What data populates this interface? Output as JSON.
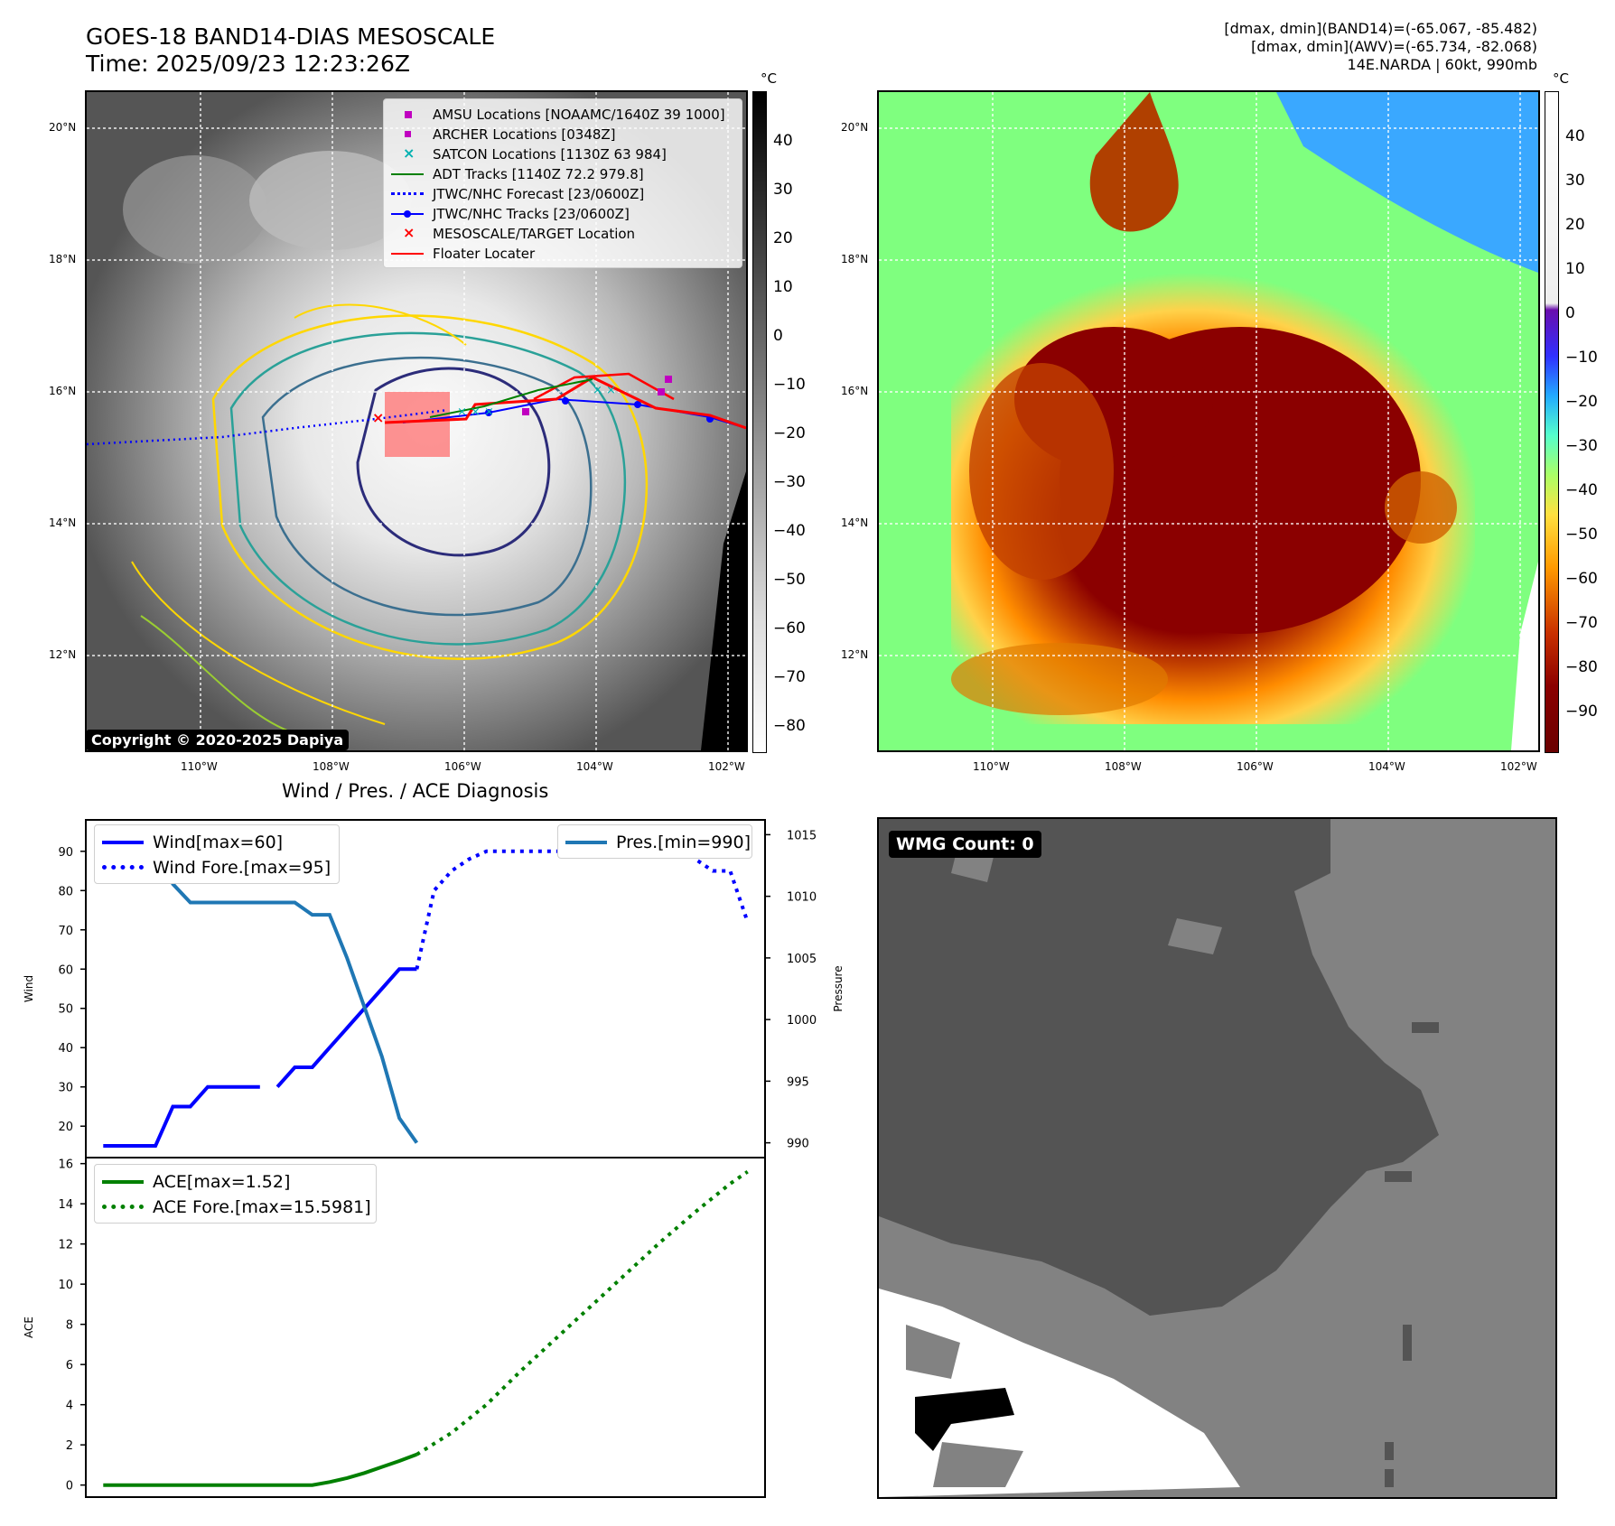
{
  "header": {
    "title_line1": "GOES-18 BAND14-DIAS MESOSCALE",
    "title_line2": "Time: 2025/09/23 12:23:26Z",
    "info_line1": "[dmax, dmin](BAND14)=(-65.067, -85.482)",
    "info_line2": "[dmax, dmin](AWV)=(-65.734, -82.068)",
    "info_line3": "14E.NARDA | 60kt, 990mb"
  },
  "map_axes": {
    "lat_labels": [
      "20°N",
      "18°N",
      "16°N",
      "14°N",
      "12°N"
    ],
    "lon_labels": [
      "110°W",
      "108°W",
      "106°W",
      "104°W",
      "102°W"
    ]
  },
  "colorbar_left": {
    "unit": "°C",
    "ticks": [
      "40",
      "30",
      "20",
      "10",
      "0",
      "−10",
      "−20",
      "−30",
      "−40",
      "−50",
      "−60",
      "−70",
      "−80"
    ]
  },
  "colorbar_right": {
    "unit": "°C",
    "ticks": [
      "40",
      "30",
      "20",
      "10",
      "0",
      "−10",
      "−20",
      "−30",
      "−40",
      "−50",
      "−60",
      "−70",
      "−80",
      "−90"
    ]
  },
  "map_legend": {
    "items": [
      {
        "label": "AMSU Locations [NOAAMC/1640Z 39 1000]",
        "icon": "magenta-square-marker"
      },
      {
        "label": "ARCHER Locations [0348Z]",
        "icon": "magenta-small-square-marker"
      },
      {
        "label": "SATCON Locations [1130Z 63 984]",
        "icon": "cyan-x-marker"
      },
      {
        "label": "ADT Tracks [1140Z 72.2 979.8]",
        "icon": "green-line"
      },
      {
        "label": "JTWC/NHC Forecast [23/0600Z]",
        "icon": "blue-dotted-line"
      },
      {
        "label": "JTWC/NHC Tracks [23/0600Z]",
        "icon": "blue-line-dot"
      },
      {
        "label": "MESOSCALE/TARGET Location",
        "icon": "red-x-marker"
      },
      {
        "label": "Floater Locater",
        "icon": "red-line"
      }
    ]
  },
  "copyright": "Copyright © 2020-2025 Dapiya",
  "wmg": {
    "label": "WMG Count: 0"
  },
  "colors": {
    "wind": "#0000ff",
    "pressure": "#1f77b4",
    "ace": "#008000",
    "floater": "#ff0000",
    "amsu": "#c000c0",
    "satcon": "#00b0b0"
  },
  "chart_data": [
    {
      "type": "line",
      "title": "Wind / Pres. / ACE Diagnosis",
      "ylabel": "Wind",
      "y2label": "Pressure",
      "ylim": [
        12,
        98
      ],
      "y2lim": [
        988.8,
        1016.2
      ],
      "yticks": [
        20,
        30,
        40,
        50,
        60,
        70,
        80,
        90
      ],
      "y2ticks": [
        990,
        995,
        1000,
        1005,
        1010,
        1015
      ],
      "series": [
        {
          "name": "Wind[max=60]",
          "axis": "left",
          "style": "solid",
          "color": "#0000ff",
          "x": [
            0,
            1,
            2,
            3,
            4,
            5,
            6,
            7,
            8,
            9
          ],
          "values": [
            15,
            15,
            15,
            15,
            25,
            25,
            30,
            30,
            30,
            30
          ]
        },
        {
          "name": "Wind[max=60]",
          "axis": "left",
          "style": "solid",
          "color": "#0000ff",
          "x": [
            10,
            11,
            12,
            13,
            14,
            15,
            16,
            17,
            18
          ],
          "values": [
            30,
            35,
            35,
            40,
            45,
            50,
            55,
            60,
            60
          ]
        },
        {
          "name": "Wind Fore.[max=95]",
          "axis": "left",
          "style": "dotted",
          "color": "#0000ff",
          "x": [
            18,
            19,
            20,
            21,
            22,
            23,
            24,
            25,
            26,
            27,
            28,
            29,
            30,
            31,
            32,
            33,
            34,
            35,
            36,
            37
          ],
          "values": [
            60,
            80,
            85,
            88,
            90,
            90,
            90,
            90,
            90,
            90,
            92,
            95,
            95,
            95,
            95,
            95,
            88,
            85,
            85,
            72
          ]
        },
        {
          "name": "Pres.[min=990]",
          "axis": "right",
          "style": "solid",
          "color": "#1f77b4",
          "x": [
            0,
            1,
            2,
            3,
            4,
            5,
            6,
            7,
            8,
            9,
            10,
            11,
            12,
            13,
            14,
            15,
            16,
            17,
            18
          ],
          "values": [
            1015,
            1015,
            1015,
            1015,
            1011,
            1009.5,
            1009.5,
            1009.5,
            1009.5,
            1009.5,
            1009.5,
            1009.5,
            1008.5,
            1008.5,
            1005,
            1001,
            997,
            992,
            990
          ]
        }
      ],
      "legend": [
        "Wind[max=60]",
        "Wind Fore.[max=95]",
        "Pres.[min=990]"
      ]
    },
    {
      "type": "line",
      "ylabel": "ACE",
      "ylim": [
        -0.6,
        16.3
      ],
      "yticks": [
        0,
        2,
        4,
        6,
        8,
        10,
        12,
        14,
        16
      ],
      "series": [
        {
          "name": "ACE[max=1.52]",
          "style": "solid",
          "color": "#008000",
          "x": [
            0,
            2,
            4,
            6,
            8,
            10,
            12,
            13,
            14,
            15,
            16,
            17,
            18
          ],
          "values": [
            0,
            0,
            0,
            0,
            0,
            0,
            0,
            0.15,
            0.35,
            0.6,
            0.9,
            1.2,
            1.52
          ]
        },
        {
          "name": "ACE Fore.[max=15.5981]",
          "style": "dotted",
          "color": "#008000",
          "x": [
            18,
            20,
            22,
            24,
            26,
            28,
            30,
            32,
            34,
            36,
            37
          ],
          "values": [
            1.52,
            2.6,
            4.0,
            5.7,
            7.3,
            8.9,
            10.5,
            12.1,
            13.6,
            15.0,
            15.6
          ]
        }
      ],
      "legend": [
        "ACE[max=1.52]",
        "ACE Fore.[max=15.5981]"
      ]
    }
  ]
}
